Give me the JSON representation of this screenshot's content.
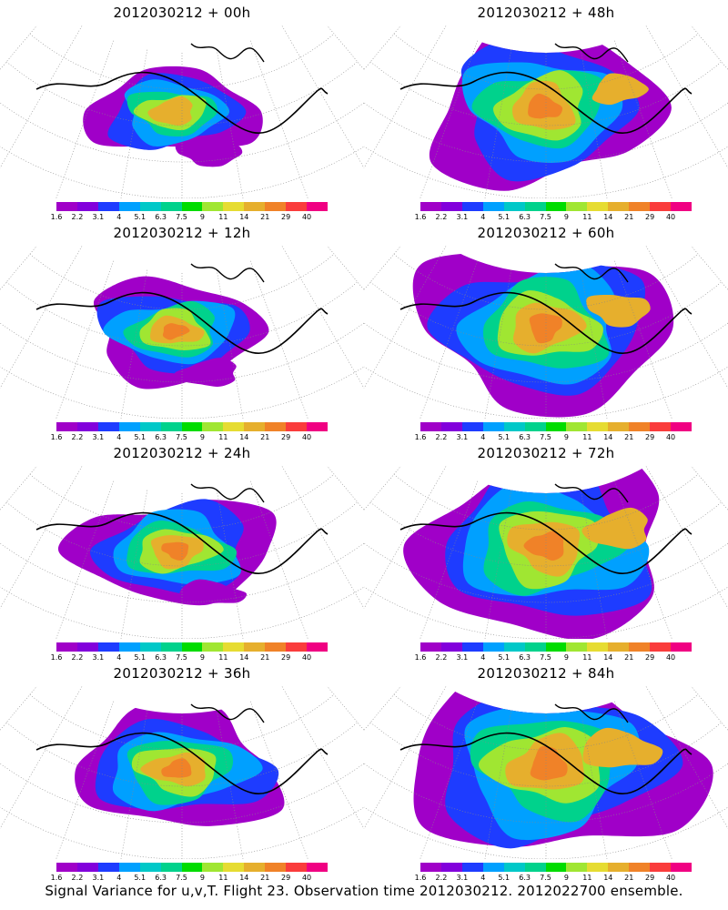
{
  "colorbar": {
    "labels": [
      "1.6",
      "2.2",
      "3.1",
      "4",
      "5.1",
      "6.3",
      "7.5",
      "9",
      "11",
      "14",
      "21",
      "29",
      "40"
    ],
    "colors": [
      "#a000c8",
      "#8200dc",
      "#1e3cff",
      "#00a0ff",
      "#00c8c8",
      "#00d28c",
      "#00dc00",
      "#a0e632",
      "#e6dc32",
      "#e6af2d",
      "#f08228",
      "#fa3c3c",
      "#f00082"
    ]
  },
  "panels": [
    {
      "title": "2012030212 + 00h",
      "lead": 0
    },
    {
      "title": "2012030212 + 48h",
      "lead": 48
    },
    {
      "title": "2012030212 + 12h",
      "lead": 12
    },
    {
      "title": "2012030212 + 60h",
      "lead": 60
    },
    {
      "title": "2012030212 + 24h",
      "lead": 24
    },
    {
      "title": "2012030212 + 72h",
      "lead": 72
    },
    {
      "title": "2012030212 + 36h",
      "lead": 36
    },
    {
      "title": "2012030212 + 84h",
      "lead": 84
    }
  ],
  "footer": "Signal Variance for u,v,T. Flight 23. Observation time 2012030212. 2012022700 ensemble."
}
